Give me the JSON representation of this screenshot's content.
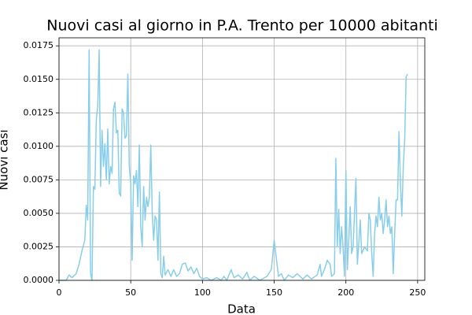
{
  "chart_data": {
    "type": "line",
    "title": "Nuovi casi al giorno in P.A. Trento per 10000 abitanti",
    "x_label": "Data",
    "y_label": "Nuovi casi",
    "x": [
      0,
      5,
      7,
      9,
      12,
      14,
      16,
      18,
      19,
      20,
      21,
      22,
      23,
      24,
      25,
      26,
      27,
      28,
      29,
      30,
      31,
      32,
      33,
      34,
      35,
      36,
      37,
      38,
      39,
      40,
      41,
      42,
      43,
      44,
      45,
      46,
      47,
      48,
      49,
      50,
      51,
      52,
      53,
      54,
      55,
      56,
      57,
      58,
      59,
      60,
      61,
      62,
      63,
      64,
      65,
      66,
      67,
      68,
      69,
      70,
      71,
      72,
      73,
      74,
      76,
      78,
      80,
      82,
      84,
      86,
      88,
      90,
      92,
      94,
      96,
      98,
      100,
      103,
      106,
      110,
      113,
      115,
      117,
      120,
      122,
      125,
      128,
      131,
      133,
      136,
      140,
      145,
      148,
      150,
      152,
      153,
      155,
      157,
      160,
      163,
      166,
      170,
      173,
      176,
      180,
      182,
      183,
      185,
      187,
      189,
      190,
      192,
      193,
      194,
      195,
      196,
      197,
      198,
      199,
      200,
      201,
      202,
      203,
      204,
      205,
      207,
      208,
      209,
      210,
      211,
      213,
      215,
      216,
      217,
      218,
      219,
      220,
      221,
      222,
      223,
      224,
      225,
      226,
      227,
      228,
      229,
      230,
      231,
      232,
      233,
      234,
      235,
      236,
      237,
      238,
      239,
      240,
      241,
      242,
      243
    ],
    "series": [
      {
        "name": "Nuovi casi",
        "color": "#87ceeb",
        "values": [
          0,
          0,
          0.0004,
          0.0002,
          0.0005,
          0.0012,
          0.0022,
          0.003,
          0.0056,
          0.0045,
          0.0172,
          0.0005,
          0,
          0.007,
          0.0068,
          0.012,
          0.013,
          0.0172,
          0.007,
          0.0112,
          0.0085,
          0.0102,
          0.0075,
          0.0113,
          0.0072,
          0.0085,
          0.008,
          0.0128,
          0.0133,
          0.011,
          0.0112,
          0.0065,
          0.0063,
          0.0128,
          0.0125,
          0.0106,
          0.0108,
          0.0154,
          0.0085,
          0.0072,
          0.0015,
          0.0078,
          0.0072,
          0.0082,
          0.0055,
          0.0101,
          0.004,
          0.0025,
          0.007,
          0.0045,
          0.0062,
          0.0055,
          0.0062,
          0.0101,
          0.005,
          0.003,
          0.0048,
          0.0045,
          0.0015,
          0.0066,
          0.0005,
          0.0002,
          0.0018,
          0.0004,
          0.0008,
          0.0003,
          0.0008,
          0.0003,
          0.0005,
          0.0012,
          0.0013,
          0.0007,
          0.001,
          0.0005,
          0.0009,
          0.0003,
          0.0001,
          0.0002,
          0,
          0.0002,
          0,
          0.0003,
          0,
          0.0008,
          0.0002,
          0.0004,
          0.0001,
          0.0006,
          0,
          0.0003,
          0,
          0.0003,
          0.0008,
          0.003,
          0.0012,
          0.0003,
          0.0005,
          0,
          0.0004,
          0.0002,
          0.0005,
          0.0001,
          0.0004,
          0.0001,
          0.0004,
          0.0012,
          0.0003,
          0.0008,
          0.0015,
          0.0012,
          0.0003,
          0.0005,
          0.0091,
          0.0025,
          0.0053,
          0.002,
          0.004,
          0.0025,
          0.0003,
          0.0082,
          0.0008,
          0.003,
          0.0055,
          0.002,
          0.0025,
          0.0076,
          0.0012,
          0.0028,
          0.0045,
          0.002,
          0.0025,
          0.0022,
          0.005,
          0.0045,
          0.002,
          0.0003,
          0.0035,
          0.0048,
          0.004,
          0.0062,
          0.0045,
          0.005,
          0.0035,
          0.0045,
          0.006,
          0.004,
          0.0048,
          0.0035,
          0.004,
          0.0005,
          0.0035,
          0.006,
          0.006,
          0.0111,
          0.0073,
          0.0048,
          0.0085,
          0.0105,
          0.0152,
          0.0154
        ]
      }
    ],
    "xlim": [
      0,
      255
    ],
    "xticks": [
      0,
      50,
      100,
      150,
      200,
      250
    ],
    "ylim": [
      0,
      0.0181
    ],
    "yticks": [
      {
        "value": 0,
        "label": "0.0000"
      },
      {
        "value": 0.0025,
        "label": "0.0025"
      },
      {
        "value": 0.005,
        "label": "0.0050"
      },
      {
        "value": 0.0075,
        "label": "0.0075"
      },
      {
        "value": 0.01,
        "label": "0.0100"
      },
      {
        "value": 0.0125,
        "label": "0.0125"
      },
      {
        "value": 0.015,
        "label": "0.0150"
      },
      {
        "value": 0.0175,
        "label": "0.0175"
      }
    ],
    "grid": true
  }
}
